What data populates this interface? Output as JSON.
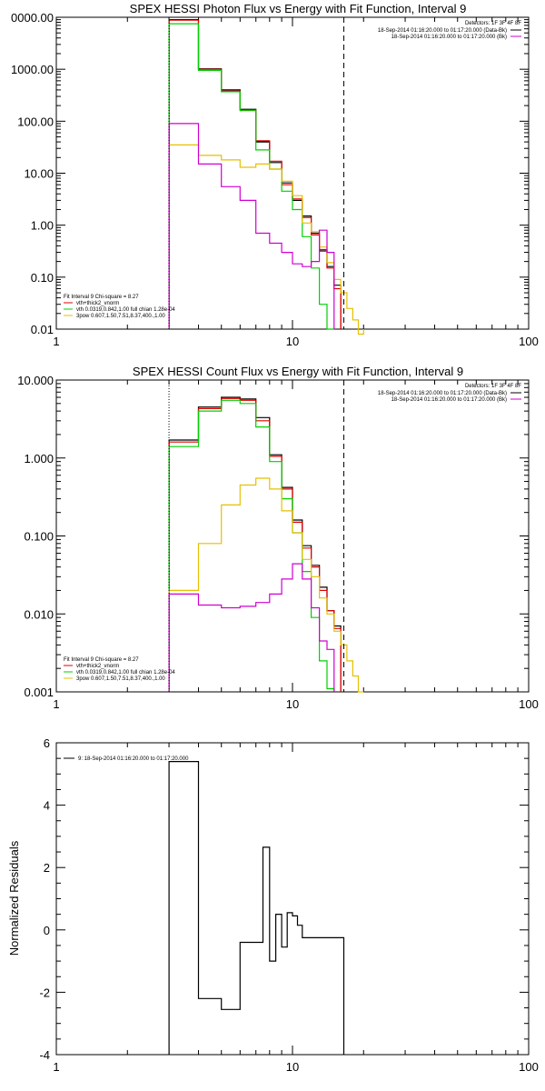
{
  "colors": {
    "background": "#ffffff",
    "axes": "#000000",
    "total": "#e00000",
    "thermal": "#00d000",
    "nonthermal": "#e6c000",
    "background_spec": "#d000d0",
    "data": "#000000"
  },
  "chart_data": [
    {
      "type": "line",
      "title": "SPEX HESSI Photon Flux vs Energy with Fit Function, Interval 9",
      "xscale": "log",
      "yscale": "log",
      "xlim": [
        1,
        100
      ],
      "ylim": [
        0.01,
        10000
      ],
      "xtick_labels": [
        "1",
        "10",
        "100"
      ],
      "ytick_labels": [
        "0.01",
        "0.10",
        "1.00",
        "10.00",
        "100.00",
        "1000.00",
        "0000.00"
      ],
      "edges": [
        3,
        4,
        5,
        6,
        7,
        8,
        9,
        10,
        11,
        12,
        13,
        14,
        15,
        16,
        17,
        18,
        19,
        20,
        21
      ],
      "energy_range_markers": [
        3,
        16.5
      ],
      "detectors_label": "Detectors: 1F 3F 4F 8F",
      "legend_entries": [
        {
          "text": "18-Sep-2014 01:16:20.000 to 01:17:20.000 (Data-Bk)",
          "color": "#000000"
        },
        {
          "text": "18-Sep-2014 01:16:20.000 to 01:17:20.000 (Bk)",
          "color": "#d000d0"
        }
      ],
      "fit_lines": [
        "Fit Interval 9   Chi-square = 8.27",
        "vth+thick2_vnorm",
        "vth 0.0319,0.842,1.00  full chian 1.28e-04",
        "3pow 0.607,1.50,7.51,8.37,400.,1.00"
      ],
      "fit_colors": [
        "#000000",
        "#e00000",
        "#00d000",
        "#e6c000"
      ],
      "series": [
        {
          "role": "data",
          "color": "#000000",
          "values": [
            9000,
            1020,
            400,
            170,
            40,
            16,
            6.5,
            3.0,
            1.5,
            0.7,
            0.32,
            0.16,
            0.07,
            null,
            null,
            null,
            null,
            null
          ]
        },
        {
          "role": "total",
          "color": "#e00000",
          "values": [
            8800,
            1000,
            380,
            165,
            42,
            17,
            6.0,
            3.2,
            1.4,
            0.65,
            0.34,
            0.15,
            0.06,
            null,
            null,
            null,
            null,
            null
          ]
        },
        {
          "role": "thermal",
          "color": "#00d000",
          "values": [
            7500,
            950,
            370,
            160,
            28,
            12,
            4.5,
            2.0,
            0.6,
            0.15,
            0.03,
            0.01,
            null,
            null,
            null,
            null,
            null,
            null
          ]
        },
        {
          "role": "nonthermal",
          "color": "#e6c000",
          "values": [
            35,
            22,
            18,
            13,
            15,
            12,
            7.0,
            3.7,
            1.1,
            0.75,
            0.38,
            0.19,
            0.09,
            0.05,
            0.025,
            0.015,
            0.008,
            null
          ]
        },
        {
          "role": "background",
          "color": "#d000d0",
          "values": [
            90,
            15,
            5.5,
            3.0,
            0.7,
            0.45,
            0.3,
            0.18,
            0.16,
            0.2,
            0.8,
            0.3,
            null,
            null,
            null,
            null,
            null,
            null
          ]
        }
      ]
    },
    {
      "type": "line",
      "title": "SPEX HESSI Count Flux vs Energy with Fit Function, Interval 9",
      "xscale": "log",
      "yscale": "log",
      "xlim": [
        1,
        100
      ],
      "ylim": [
        0.001,
        10
      ],
      "xtick_labels": [
        "1",
        "10",
        "100"
      ],
      "ytick_labels": [
        "0.001",
        "0.010",
        "0.100",
        "1.000",
        "10.000"
      ],
      "edges": [
        3,
        4,
        5,
        6,
        7,
        8,
        9,
        10,
        11,
        12,
        13,
        14,
        15,
        16,
        17,
        18,
        19,
        20,
        21
      ],
      "energy_range_markers": [
        3,
        16.5
      ],
      "detectors_label": "Detectors: 1F 3F 4F 8F",
      "legend_entries": [
        {
          "text": "18-Sep-2014 01:16:20.000 to 01:17:20.000 (Data-Bk)",
          "color": "#000000"
        },
        {
          "text": "18-Sep-2014 01:16:20.000 to 01:17:20.000 (Bk)",
          "color": "#d000d0"
        }
      ],
      "fit_lines": [
        "Fit Interval 9   Chi-square = 8.27",
        "vth+thick2_vnorm",
        "vth 0.0319,0.842,1.00  full chian 1.28e-04",
        "3pow 0.607,1.50,7.51,8.37,400.,1.00"
      ],
      "fit_colors": [
        "#000000",
        "#e00000",
        "#00d000",
        "#e6c000"
      ],
      "series": [
        {
          "role": "data",
          "color": "#000000",
          "values": [
            1.7,
            4.5,
            6.0,
            5.7,
            3.3,
            1.1,
            0.42,
            0.16,
            0.075,
            0.042,
            0.022,
            0.011,
            0.007,
            null,
            null,
            null,
            null,
            null
          ]
        },
        {
          "role": "total",
          "color": "#e00000",
          "values": [
            1.6,
            4.3,
            5.8,
            5.5,
            3.0,
            1.05,
            0.4,
            0.15,
            0.07,
            0.04,
            0.02,
            0.011,
            0.0065,
            null,
            null,
            null,
            null,
            null
          ]
        },
        {
          "role": "thermal",
          "color": "#00d000",
          "values": [
            1.4,
            4.0,
            5.5,
            5.0,
            2.5,
            0.9,
            0.3,
            0.11,
            0.035,
            0.009,
            0.0025,
            0.0011,
            null,
            null,
            null,
            null,
            null,
            null
          ]
        },
        {
          "role": "nonthermal",
          "color": "#e6c000",
          "values": [
            0.02,
            0.08,
            0.25,
            0.45,
            0.55,
            0.4,
            0.21,
            0.11,
            0.05,
            0.03,
            0.016,
            0.01,
            0.006,
            0.004,
            0.0025,
            0.0016,
            0.001,
            null
          ]
        },
        {
          "role": "background",
          "color": "#d000d0",
          "values": [
            0.018,
            0.013,
            0.012,
            0.0125,
            0.014,
            0.018,
            0.028,
            0.044,
            0.028,
            0.012,
            0.0045,
            0.0035,
            null,
            null,
            null,
            null,
            null,
            null
          ]
        }
      ]
    },
    {
      "type": "line",
      "title": "",
      "ylabel": "Normalized Residuals",
      "xscale": "log",
      "yscale": "linear",
      "xlim": [
        1,
        100
      ],
      "ylim": [
        -4,
        6
      ],
      "xtick_labels": [
        "1",
        "10",
        "100"
      ],
      "ytick_values": [
        -4,
        -2,
        0,
        2,
        4,
        6
      ],
      "ytick_labels": [
        "-4",
        "-2",
        "0",
        "2",
        "4",
        "6"
      ],
      "legend_entries": [
        {
          "text": "9: 18-Sep-2014 01:16:20.000 to 01:17:20.000",
          "color": "#000000"
        }
      ],
      "edges": [
        3,
        4,
        5,
        6,
        7,
        7.5,
        8,
        8.5,
        9,
        9.5,
        10,
        10.5,
        11,
        12,
        13,
        14,
        15,
        16.5
      ],
      "series": [
        {
          "role": "residual",
          "color": "#000000",
          "values": [
            5.4,
            -2.2,
            -2.55,
            -0.4,
            -0.4,
            2.65,
            -1.0,
            0.5,
            -0.55,
            0.55,
            0.45,
            0.15,
            -0.25,
            -0.25,
            -0.25,
            -0.25,
            -0.25
          ]
        }
      ]
    }
  ]
}
